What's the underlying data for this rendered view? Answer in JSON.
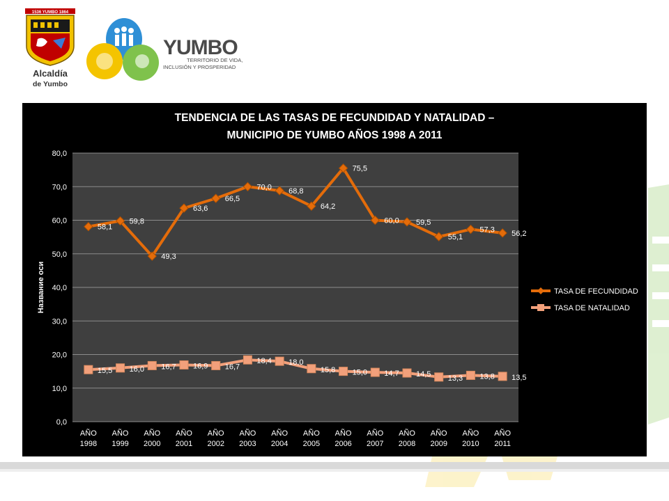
{
  "branding": {
    "alcaldia_line1": "Alcaldía",
    "alcaldia_line2": "de Yumbo",
    "shield_banner": "1536 YUMBO 1864",
    "brand_name": "YUMBO",
    "brand_tagline_1": "TERRITORIO DE VIDA,",
    "brand_tagline_2": "INCLUSIÓN Y PROSPERIDAD"
  },
  "colors": {
    "chart_background": "#000000",
    "plot_area": "#3f3f3f",
    "gridline": "#8c8c8c",
    "fecundidad": "#e46c0a",
    "natalidad": "#f2a07b",
    "green_accent": "#7fc24c",
    "yellow_accent": "#f4c400",
    "blue_accent": "#2e8fd6"
  },
  "chart_data": {
    "type": "line",
    "title": "TENDENCIA DE LAS TASAS DE FECUNDIDAD Y NATALIDAD –",
    "title_line2": "MUNICIPIO DE YUMBO AÑOS 1998 A 2011",
    "ylabel": "Название оси",
    "xlabel": "",
    "ylim": [
      0,
      80
    ],
    "yticks": [
      "0,0",
      "10,0",
      "20,0",
      "30,0",
      "40,0",
      "50,0",
      "60,0",
      "70,0",
      "80,0"
    ],
    "grid": true,
    "legend_position": "right",
    "categories": [
      [
        "AÑO",
        "1998"
      ],
      [
        "AÑO",
        "1999"
      ],
      [
        "AÑO",
        "2000"
      ],
      [
        "AÑO",
        "2001"
      ],
      [
        "AÑO",
        "2002"
      ],
      [
        "AÑO",
        "2003"
      ],
      [
        "AÑO",
        "2004"
      ],
      [
        "AÑO",
        "2005"
      ],
      [
        "AÑO",
        "2006"
      ],
      [
        "AÑO",
        "2007"
      ],
      [
        "AÑO",
        "2008"
      ],
      [
        "AÑO",
        "2009"
      ],
      [
        "AÑO",
        "2010"
      ],
      [
        "AÑO",
        "2011"
      ]
    ],
    "series": [
      {
        "name": "TASA DE FECUNDIDAD",
        "marker": "diamond",
        "values": [
          58.1,
          59.8,
          49.3,
          63.6,
          66.5,
          70.0,
          68.8,
          64.2,
          75.5,
          60.0,
          59.5,
          55.1,
          57.3,
          56.2
        ],
        "labels": [
          "58,1",
          "59,8",
          "49,3",
          "63,6",
          "66,5",
          "70,0",
          "68,8",
          "64,2",
          "75,5",
          "60,0",
          "59,5",
          "55,1",
          "57,3",
          "56,2"
        ]
      },
      {
        "name": "TASA DE NATALIDAD",
        "marker": "square",
        "values": [
          15.5,
          16.0,
          16.7,
          16.9,
          16.7,
          18.4,
          18.0,
          15.8,
          15.0,
          14.7,
          14.5,
          13.3,
          13.8,
          13.5
        ],
        "labels": [
          "15,5",
          "16,0",
          "16,7",
          "16,9",
          "16,7",
          "18,4",
          "18,0",
          "15,8",
          "15,0",
          "14,7",
          "14,5",
          "13,3",
          "13,8",
          "13,5"
        ]
      }
    ]
  }
}
